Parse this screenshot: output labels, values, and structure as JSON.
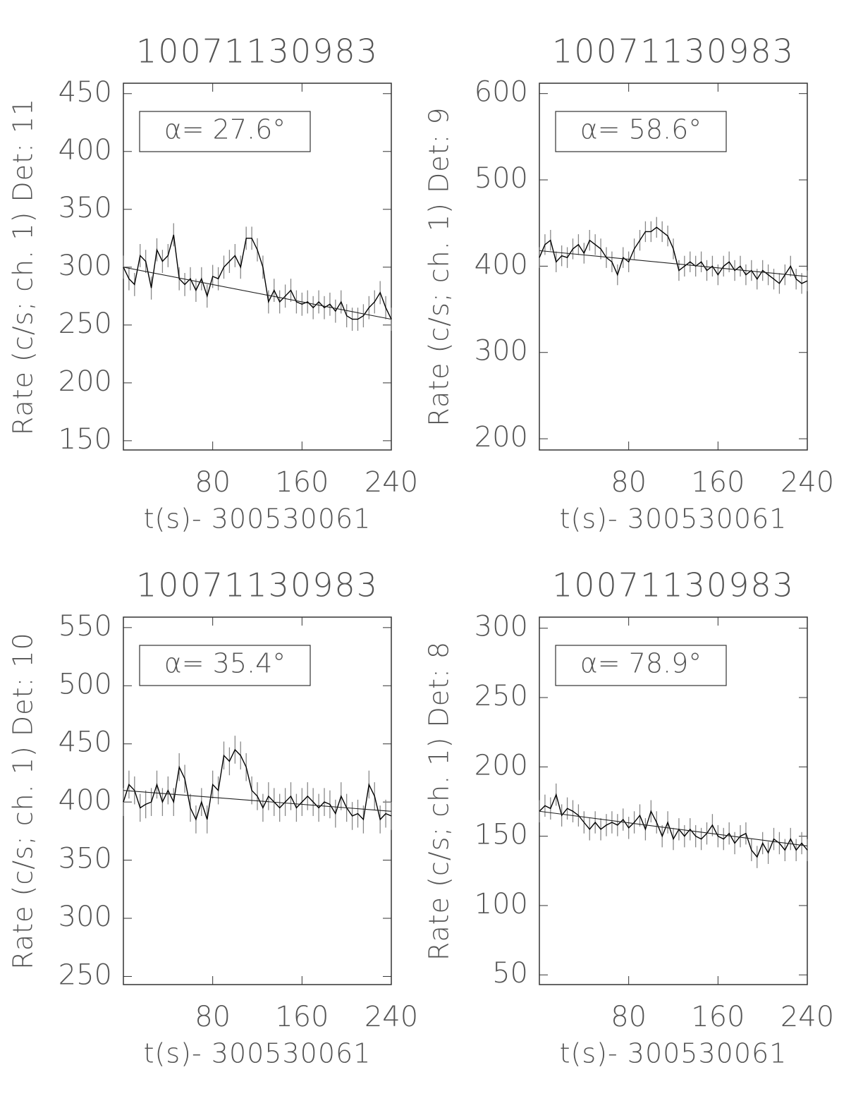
{
  "chart_data": [
    {
      "type": "line",
      "title": "10071130983",
      "xlabel": "t(s)- 300530061",
      "ylabel": "Rate (c/s; ch. 1) Det: 11",
      "annotation": "α= 27.6°",
      "x": [
        0,
        5,
        10,
        15,
        20,
        25,
        30,
        35,
        40,
        45,
        50,
        55,
        60,
        65,
        70,
        75,
        80,
        85,
        90,
        95,
        100,
        105,
        110,
        115,
        120,
        125,
        130,
        135,
        140,
        145,
        150,
        155,
        160,
        165,
        170,
        175,
        180,
        185,
        190,
        195,
        200,
        205,
        210,
        215,
        220,
        225,
        230,
        235,
        240
      ],
      "series": [
        {
          "values": [
            300,
            290,
            285,
            310,
            305,
            282,
            315,
            305,
            310,
            328,
            290,
            285,
            290,
            280,
            290,
            275,
            292,
            290,
            300,
            305,
            310,
            300,
            325,
            325,
            315,
            300,
            270,
            280,
            270,
            275,
            280,
            270,
            268,
            270,
            265,
            270,
            265,
            268,
            262,
            270,
            258,
            255,
            255,
            258,
            265,
            270,
            278,
            265,
            255
          ],
          "error": 10,
          "color": "#000000"
        }
      ],
      "fit": {
        "x": [
          0,
          240
        ],
        "values": [
          300,
          255
        ]
      },
      "xlim": [
        0,
        240
      ],
      "xticks": [
        80,
        160,
        240
      ],
      "ylim": [
        142,
        459
      ],
      "yticks": [
        150,
        200,
        250,
        300,
        350,
        400,
        450
      ]
    },
    {
      "type": "line",
      "title": "10071130983",
      "xlabel": "t(s)- 300530061",
      "ylabel": "Rate (c/s; ch. 1) Det: 9",
      "annotation": "α= 58.6°",
      "x": [
        0,
        5,
        10,
        15,
        20,
        25,
        30,
        35,
        40,
        45,
        50,
        55,
        60,
        65,
        70,
        75,
        80,
        85,
        90,
        95,
        100,
        105,
        110,
        115,
        120,
        125,
        130,
        135,
        140,
        145,
        150,
        155,
        160,
        165,
        170,
        175,
        180,
        185,
        190,
        195,
        200,
        205,
        210,
        215,
        220,
        225,
        230,
        235,
        240
      ],
      "series": [
        {
          "values": [
            410,
            425,
            430,
            405,
            412,
            410,
            420,
            425,
            415,
            430,
            425,
            420,
            410,
            405,
            390,
            410,
            405,
            420,
            430,
            440,
            440,
            445,
            440,
            435,
            420,
            395,
            400,
            405,
            400,
            405,
            395,
            400,
            390,
            400,
            405,
            395,
            400,
            390,
            395,
            385,
            395,
            390,
            385,
            380,
            390,
            400,
            385,
            380,
            383
          ],
          "error": 12,
          "color": "#000000"
        }
      ],
      "fit": {
        "x": [
          0,
          240
        ],
        "values": [
          418,
          388
        ]
      },
      "xlim": [
        0,
        240
      ],
      "xticks": [
        80,
        160,
        240
      ],
      "ylim": [
        187,
        612
      ],
      "yticks": [
        200,
        300,
        400,
        500,
        600
      ]
    },
    {
      "type": "line",
      "title": "10071130983",
      "xlabel": "t(s)- 300530061",
      "ylabel": "Rate (c/s; ch. 1) Det: 10",
      "annotation": "α= 35.4°",
      "x": [
        0,
        5,
        10,
        15,
        20,
        25,
        30,
        35,
        40,
        45,
        50,
        55,
        60,
        65,
        70,
        75,
        80,
        85,
        90,
        95,
        100,
        105,
        110,
        115,
        120,
        125,
        130,
        135,
        140,
        145,
        150,
        155,
        160,
        165,
        170,
        175,
        180,
        185,
        190,
        195,
        200,
        205,
        210,
        215,
        220,
        225,
        230,
        235,
        240
      ],
      "series": [
        {
          "values": [
            400,
            415,
            410,
            395,
            398,
            400,
            415,
            400,
            410,
            400,
            430,
            420,
            395,
            385,
            400,
            385,
            415,
            410,
            440,
            435,
            445,
            440,
            430,
            410,
            405,
            395,
            405,
            400,
            395,
            400,
            405,
            395,
            400,
            405,
            400,
            395,
            400,
            398,
            390,
            405,
            395,
            388,
            390,
            385,
            415,
            405,
            385,
            390,
            388
          ],
          "error": 12,
          "color": "#000000"
        }
      ],
      "fit": {
        "x": [
          0,
          240
        ],
        "values": [
          410,
          392
        ]
      },
      "xlim": [
        0,
        240
      ],
      "xticks": [
        80,
        160,
        240
      ],
      "ylim": [
        243,
        559
      ],
      "yticks": [
        250,
        300,
        350,
        400,
        450,
        500,
        550
      ]
    },
    {
      "type": "line",
      "title": "10071130983",
      "xlabel": "t(s)- 300530061",
      "ylabel": "Rate (c/s; ch. 1) Det: 8",
      "annotation": "α= 78.9°",
      "x": [
        0,
        5,
        10,
        15,
        20,
        25,
        30,
        35,
        40,
        45,
        50,
        55,
        60,
        65,
        70,
        75,
        80,
        85,
        90,
        95,
        100,
        105,
        110,
        115,
        120,
        125,
        130,
        135,
        140,
        145,
        150,
        155,
        160,
        165,
        170,
        175,
        180,
        185,
        190,
        195,
        200,
        205,
        210,
        215,
        220,
        225,
        230,
        235,
        240
      ],
      "series": [
        {
          "values": [
            168,
            172,
            170,
            180,
            165,
            170,
            168,
            165,
            160,
            155,
            160,
            155,
            158,
            160,
            158,
            162,
            156,
            160,
            165,
            155,
            168,
            160,
            150,
            160,
            148,
            155,
            150,
            155,
            150,
            148,
            152,
            158,
            150,
            148,
            152,
            145,
            150,
            152,
            140,
            135,
            145,
            138,
            148,
            145,
            140,
            148,
            140,
            145,
            140
          ],
          "error": 8,
          "color": "#000000"
        }
      ],
      "fit": {
        "x": [
          0,
          240
        ],
        "values": [
          168,
          143
        ]
      },
      "xlim": [
        0,
        240
      ],
      "xticks": [
        80,
        160,
        240
      ],
      "ylim": [
        43,
        308
      ],
      "yticks": [
        50,
        100,
        150,
        200,
        250,
        300
      ]
    }
  ]
}
